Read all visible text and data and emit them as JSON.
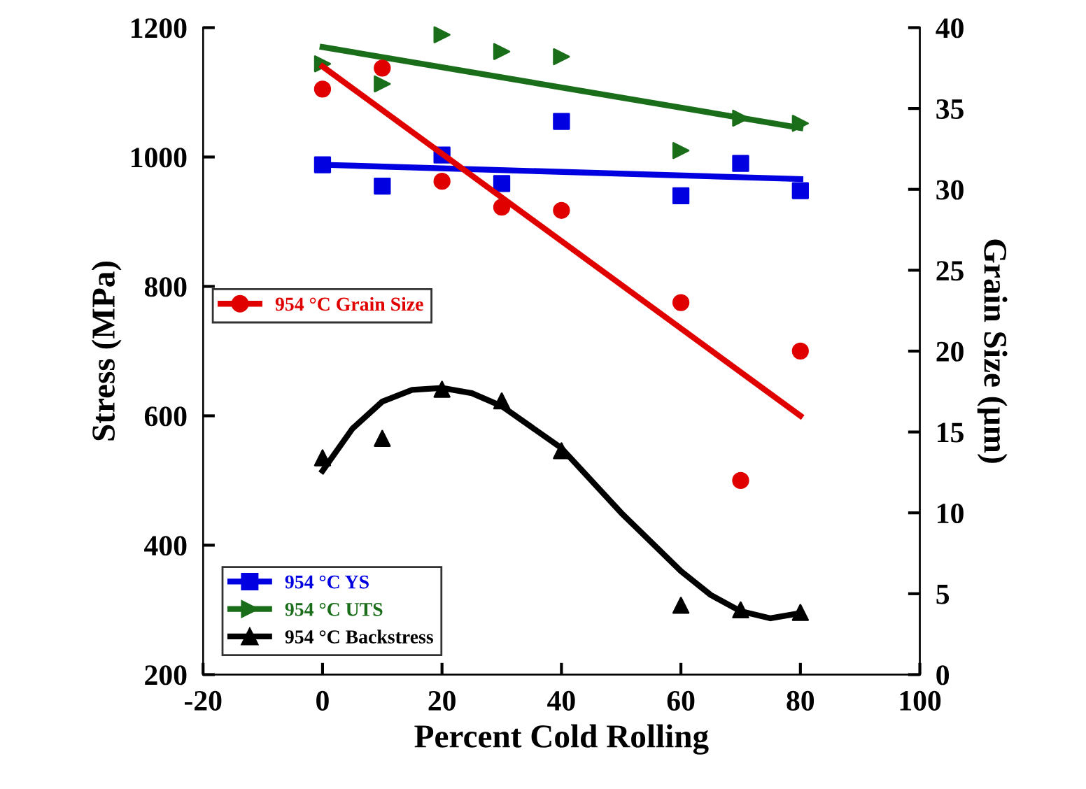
{
  "chart_data": {
    "type": "scatter",
    "xlabel": "Percent Cold Rolling",
    "ylabel": "Stress (MPa)",
    "y2label": "Grain Size (µm)",
    "xlim": [
      -20,
      100
    ],
    "xticks": [
      -20,
      0,
      20,
      40,
      60,
      80,
      100
    ],
    "ylim": [
      200,
      1200
    ],
    "yticks": [
      200,
      400,
      600,
      800,
      1000,
      1200
    ],
    "y2lim": [
      0,
      40
    ],
    "y2ticks": [
      0,
      5,
      10,
      15,
      20,
      25,
      30,
      35,
      40
    ],
    "grid": false,
    "legend": "left",
    "series": [
      {
        "name": "954 °C Grain Size",
        "axis": "y2",
        "color": "#e00000",
        "marker": "circle",
        "x": [
          0,
          10,
          20,
          30,
          40,
          60,
          70,
          80
        ],
        "values": [
          36.2,
          37.5,
          30.5,
          28.9,
          28.7,
          23.0,
          12.0,
          20.0
        ]
      },
      {
        "type": "line",
        "axis": "y2",
        "color": "#e00000",
        "marker": "none",
        "x": [
          0,
          80
        ],
        "values": [
          37.6,
          16.0
        ]
      },
      {
        "name": "954 °C YS",
        "color": "#0000e0",
        "marker": "square",
        "x": [
          0,
          10,
          20,
          30,
          40,
          60,
          70,
          80
        ],
        "values": [
          988,
          955,
          1003,
          959,
          1055,
          940,
          990,
          948
        ]
      },
      {
        "type": "line",
        "color": "#0000e0",
        "marker": "none",
        "x": [
          0,
          80
        ],
        "values": [
          988,
          966
        ]
      },
      {
        "name": "954 °C UTS",
        "color": "#1a6e1a",
        "marker": "triangle-right",
        "x": [
          0,
          10,
          20,
          30,
          40,
          60,
          70,
          80
        ],
        "values": [
          1144,
          1113,
          1189,
          1163,
          1155,
          1010,
          1060,
          1052
        ]
      },
      {
        "type": "line",
        "color": "#1a6e1a",
        "marker": "none",
        "x": [
          0,
          80
        ],
        "values": [
          1170,
          1045
        ]
      },
      {
        "name": "954 °C Backstress",
        "color": "#000000",
        "marker": "triangle",
        "x": [
          0,
          10,
          20,
          30,
          40,
          60,
          70,
          80
        ],
        "values": [
          535,
          565,
          641,
          623,
          546,
          307,
          300,
          296
        ]
      },
      {
        "type": "line",
        "color": "#000000",
        "marker": "none",
        "x": [
          0,
          5,
          10,
          15,
          20,
          25,
          30,
          40,
          50,
          60,
          65,
          70,
          75,
          80
        ],
        "values": [
          515,
          580,
          622,
          640,
          643,
          635,
          615,
          550,
          450,
          360,
          323,
          298,
          287,
          295
        ]
      }
    ]
  }
}
